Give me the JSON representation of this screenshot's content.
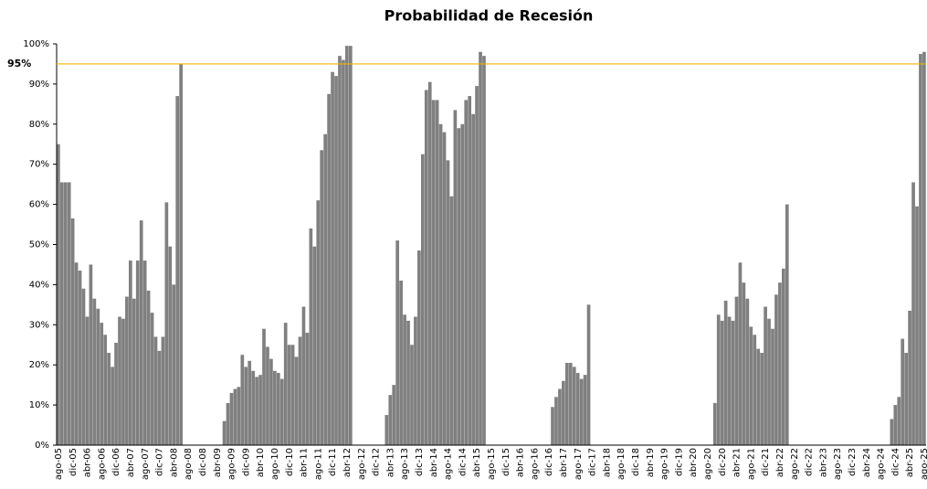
{
  "chart_data": {
    "type": "bar",
    "title": "Probabilidad de Recesión",
    "color": "#808080",
    "ylim": [
      0,
      100
    ],
    "yticks": [
      {
        "value": 0,
        "label": "0%"
      },
      {
        "value": 10,
        "label": "10%"
      },
      {
        "value": 20,
        "label": "20%"
      },
      {
        "value": 30,
        "label": "30%"
      },
      {
        "value": 40,
        "label": "40%"
      },
      {
        "value": 50,
        "label": "50%"
      },
      {
        "value": 60,
        "label": "60%"
      },
      {
        "value": 70,
        "label": "70%"
      },
      {
        "value": 80,
        "label": "80%"
      },
      {
        "value": 90,
        "label": "90%"
      },
      {
        "value": 100,
        "label": "100%"
      }
    ],
    "threshold": {
      "value": 95,
      "label": "95%",
      "color": "#f0b400"
    },
    "categories": [
      "ago-05",
      null,
      null,
      null,
      "dic-05",
      null,
      null,
      null,
      "abr-06",
      null,
      null,
      null,
      "ago-06",
      null,
      null,
      null,
      "dic-06",
      null,
      null,
      null,
      "abr-07",
      null,
      null,
      null,
      "ago-07",
      null,
      null,
      null,
      "dic-07",
      null,
      null,
      null,
      "abr-08",
      null,
      null,
      null,
      "ago-08",
      null,
      null,
      null,
      "dic-08",
      null,
      null,
      null,
      "abr-09",
      null,
      null,
      null,
      "ago-09",
      null,
      null,
      null,
      "dic-09",
      null,
      null,
      null,
      "abr-10",
      null,
      null,
      null,
      "ago-10",
      null,
      null,
      null,
      "dic-10",
      null,
      null,
      null,
      "abr-11",
      null,
      null,
      null,
      "ago-11",
      null,
      null,
      null,
      "dic-11",
      null,
      null,
      null,
      "abr-12",
      null,
      null,
      null,
      "ago-12",
      null,
      null,
      null,
      "dic-12",
      null,
      null,
      null,
      "abr-13",
      null,
      null,
      null,
      "ago-13",
      null,
      null,
      null,
      "dic-13",
      null,
      null,
      null,
      "abr-14",
      null,
      null,
      null,
      "ago-14",
      null,
      null,
      null,
      "dic-14",
      null,
      null,
      null,
      "abr-15",
      null,
      null,
      null,
      "ago-15",
      null,
      null,
      null,
      "dic-15",
      null,
      null,
      null,
      "abr-16",
      null,
      null,
      null,
      "ago-16",
      null,
      null,
      null,
      "dic-16",
      null,
      null,
      null,
      "abr-17",
      null,
      null,
      null,
      "ago-17",
      null,
      null,
      null,
      "dic-17",
      null,
      null,
      null,
      "abr-18",
      null,
      null,
      null,
      "ago-18",
      null,
      null,
      null,
      "dic-18",
      null,
      null,
      null,
      "abr-19",
      null,
      null,
      null,
      "ago-19",
      null,
      null,
      null,
      "dic-19",
      null,
      null,
      null,
      "abr-20",
      null,
      null,
      null,
      "ago-20",
      null,
      null,
      null,
      "dic-20",
      null,
      null,
      null,
      "abr-21",
      null,
      null,
      null,
      "ago-21",
      null,
      null,
      null,
      "dic-21",
      null,
      null,
      null,
      "abr-22",
      null,
      null,
      null,
      "ago-22",
      null,
      null,
      null,
      "dic-22",
      null,
      null,
      null,
      "abr-23",
      null,
      null,
      null,
      "ago-23",
      null,
      null,
      null,
      "dic-23",
      null,
      null,
      null,
      "abr-24",
      null,
      null,
      null,
      "ago-24",
      null,
      null,
      null,
      "dic-24",
      null,
      null,
      null,
      "abr-25",
      null,
      null,
      null,
      "ago-25"
    ],
    "values": [
      75,
      65.5,
      65.5,
      65.5,
      56.5,
      45.5,
      43.5,
      39,
      32,
      45,
      36.5,
      34,
      30.5,
      27.5,
      23,
      19.5,
      25.5,
      32,
      31.5,
      37,
      46,
      36.5,
      46,
      56,
      46,
      38.5,
      33,
      27,
      23.5,
      27,
      60.5,
      49.5,
      40,
      87,
      95,
      0,
      0,
      0,
      0,
      0,
      0,
      0,
      0,
      0,
      0,
      0,
      6,
      10.5,
      13,
      14,
      14.5,
      22.5,
      19.5,
      21,
      18.5,
      17,
      17.5,
      29,
      24.5,
      21.5,
      18.5,
      18,
      16.5,
      30.5,
      25,
      25,
      22,
      27,
      34.5,
      28,
      54,
      49.5,
      61,
      73.5,
      77.5,
      87.5,
      93,
      92,
      97,
      96,
      99.5,
      99.5,
      0,
      0,
      0,
      0,
      0,
      0,
      0,
      0,
      0,
      7.5,
      12.5,
      15,
      51,
      41,
      32.5,
      31,
      25,
      32,
      48.5,
      72.5,
      88.5,
      90.5,
      86,
      86,
      80,
      78,
      71,
      62,
      83.5,
      79,
      80,
      86,
      87,
      82.5,
      89.5,
      98,
      97,
      0,
      0,
      0,
      0,
      0,
      0,
      0,
      0,
      0,
      0,
      0,
      0,
      0,
      0,
      0,
      0,
      0,
      0,
      9.5,
      12,
      14,
      16,
      20.5,
      20.5,
      19.5,
      18,
      16.5,
      17.5,
      35,
      0,
      0,
      0,
      0,
      0,
      0,
      0,
      0,
      0,
      0,
      0,
      0,
      0,
      0,
      0,
      0,
      0,
      0,
      0,
      0,
      0,
      0,
      0,
      0,
      0,
      0,
      0,
      0,
      0,
      0,
      0,
      0,
      0,
      0,
      10.5,
      32.5,
      31,
      36,
      32,
      31,
      37,
      45.5,
      40.5,
      36.5,
      29.5,
      27.5,
      24,
      23,
      34.5,
      31.5,
      29,
      37.5,
      40.5,
      44,
      60,
      0,
      0,
      0,
      0,
      0,
      0,
      0,
      0,
      0,
      0,
      0,
      0,
      0,
      0,
      0,
      0,
      0,
      0,
      0,
      0,
      0,
      0,
      0,
      0,
      0,
      0,
      0,
      0,
      6.5,
      10,
      12,
      26.5,
      23,
      33.5,
      65.5,
      59.5,
      97.5,
      98
    ]
  }
}
